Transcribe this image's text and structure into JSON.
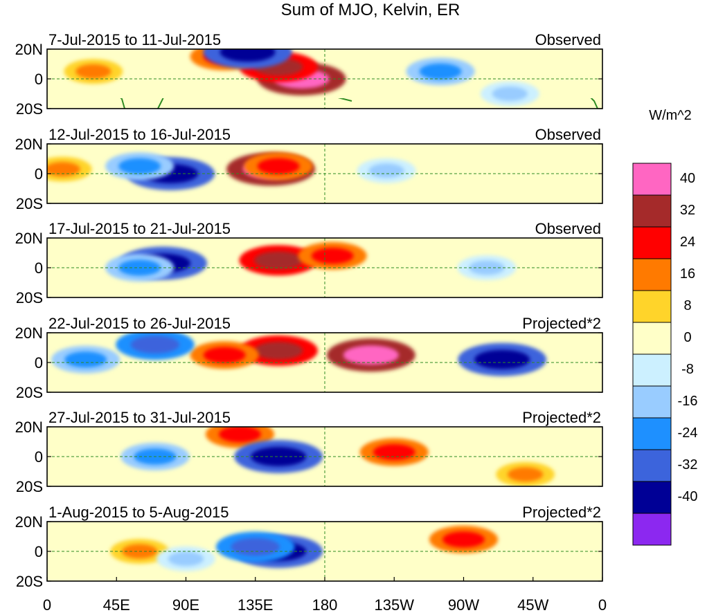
{
  "chart_data": {
    "type": "heatmap",
    "title": "Sum of MJO, Kelvin, ER",
    "colorbar_label": "W/m^2",
    "colorbar_levels": [
      "40",
      "32",
      "24",
      "16",
      "8",
      "0",
      "-8",
      "-16",
      "-24",
      "-32",
      "-40"
    ],
    "colorbar_colors": [
      "#ff66c2",
      "#a52a2a",
      "#ff0000",
      "#ff7a00",
      "#ffd42a",
      "#ffffc8",
      "#ccf0ff",
      "#99ccff",
      "#1e90ff",
      "#3c64dc",
      "#000096",
      "#8c28f0"
    ],
    "x_tick_labels": [
      "0",
      "45E",
      "90E",
      "135E",
      "180",
      "135W",
      "90W",
      "45W",
      "0"
    ],
    "y_tick_labels": [
      "20N",
      "0",
      "20S"
    ],
    "xlim": [
      0,
      360
    ],
    "ylim": [
      -20,
      20
    ],
    "panels": [
      {
        "date_range": "7-Jul-2015 to 11-Jul-2015",
        "status": "Observed",
        "anomalies": [
          {
            "lon": 165,
            "lat": 0,
            "value": 40
          },
          {
            "lon": 150,
            "lat": 8,
            "value": 32
          },
          {
            "lon": 115,
            "lat": 15,
            "value": 24
          },
          {
            "lon": 30,
            "lat": 5,
            "value": 16
          },
          {
            "lon": 130,
            "lat": 18,
            "value": -40
          },
          {
            "lon": 255,
            "lat": 5,
            "value": -24
          },
          {
            "lon": 300,
            "lat": -10,
            "value": -16
          }
        ]
      },
      {
        "date_range": "12-Jul-2015 to 16-Jul-2015",
        "status": "Observed",
        "anomalies": [
          {
            "lon": 145,
            "lat": 3,
            "value": 40
          },
          {
            "lon": 150,
            "lat": 5,
            "value": 24
          },
          {
            "lon": 10,
            "lat": 3,
            "value": 16
          },
          {
            "lon": 80,
            "lat": 0,
            "value": -40
          },
          {
            "lon": 60,
            "lat": 5,
            "value": -24
          },
          {
            "lon": 220,
            "lat": 2,
            "value": -16
          }
        ]
      },
      {
        "date_range": "17-Jul-2015 to 21-Jul-2015",
        "status": "Observed",
        "anomalies": [
          {
            "lon": 150,
            "lat": 5,
            "value": 32
          },
          {
            "lon": 185,
            "lat": 8,
            "value": 24
          },
          {
            "lon": 75,
            "lat": 3,
            "value": -40
          },
          {
            "lon": 60,
            "lat": 0,
            "value": -24
          },
          {
            "lon": 285,
            "lat": 0,
            "value": -16
          }
        ]
      },
      {
        "date_range": "22-Jul-2015 to 26-Jul-2015",
        "status": "Projected*2",
        "anomalies": [
          {
            "lon": 210,
            "lat": 5,
            "value": 40
          },
          {
            "lon": 150,
            "lat": 8,
            "value": 32
          },
          {
            "lon": 115,
            "lat": 5,
            "value": 24
          },
          {
            "lon": 70,
            "lat": 12,
            "value": -32
          },
          {
            "lon": 25,
            "lat": 2,
            "value": -24
          },
          {
            "lon": 295,
            "lat": 2,
            "value": -40
          }
        ]
      },
      {
        "date_range": "27-Jul-2015 to 31-Jul-2015",
        "status": "Projected*2",
        "anomalies": [
          {
            "lon": 225,
            "lat": 3,
            "value": 24
          },
          {
            "lon": 125,
            "lat": 15,
            "value": 24
          },
          {
            "lon": 310,
            "lat": -12,
            "value": 16
          },
          {
            "lon": 150,
            "lat": 0,
            "value": -40
          },
          {
            "lon": 70,
            "lat": 0,
            "value": -24
          }
        ]
      },
      {
        "date_range": "1-Aug-2015 to 5-Aug-2015",
        "status": "Projected*2",
        "anomalies": [
          {
            "lon": 270,
            "lat": 8,
            "value": 24
          },
          {
            "lon": 60,
            "lat": 0,
            "value": 16
          },
          {
            "lon": 150,
            "lat": 0,
            "value": -40
          },
          {
            "lon": 135,
            "lat": 3,
            "value": -32
          },
          {
            "lon": 90,
            "lat": -5,
            "value": -16
          }
        ]
      }
    ]
  }
}
